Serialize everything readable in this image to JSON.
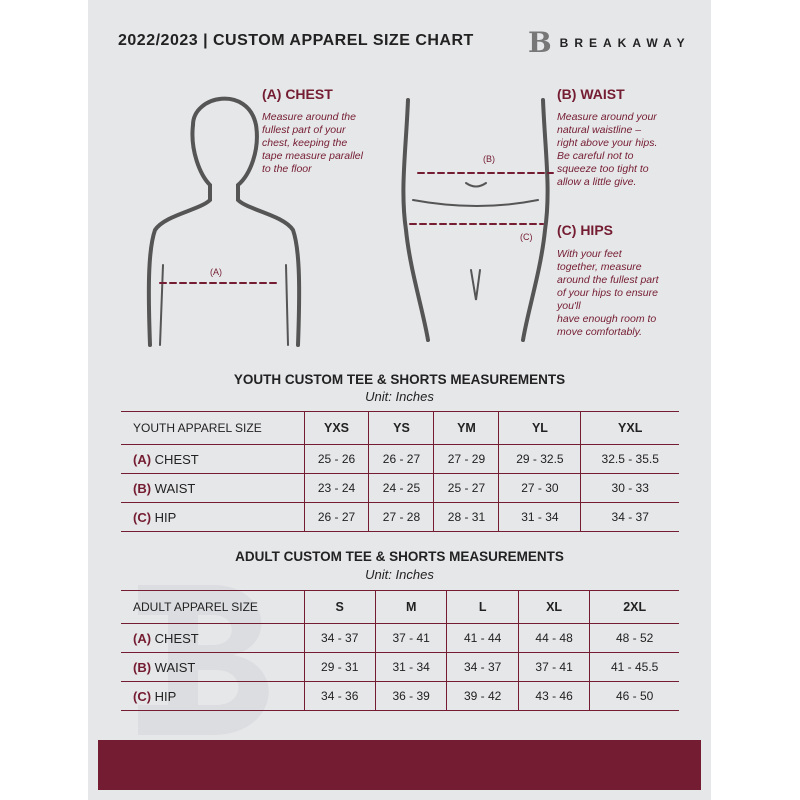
{
  "header": {
    "title": "2022/2023  |  CUSTOM APPAREL SIZE CHART",
    "brand": "BREAKAWAY",
    "brand_mark": "B"
  },
  "colors": {
    "accent": "#741c31",
    "background": "#e6e7e9"
  },
  "measures": {
    "chest": {
      "title": "(A) CHEST",
      "marker": "(A)",
      "lines": [
        "Measure around the",
        "fullest part of your",
        "chest, keeping the",
        "tape measure parallel",
        "to the floor"
      ]
    },
    "waist": {
      "title": "(B) WAIST",
      "marker": "(B)",
      "lines": [
        "Measure around your",
        "natural waistline –",
        "right above your hips.",
        "Be careful not to",
        "squeeze too tight to",
        "allow a little give."
      ]
    },
    "hips": {
      "title": "(C) HIPS",
      "marker": "(C)",
      "lines": [
        "With your feet",
        "together, measure",
        "around the fullest part",
        "of your hips to ensure",
        "you'll",
        "have enough room to",
        "move comfortably."
      ]
    }
  },
  "youth": {
    "title": "YOUTH CUSTOM TEE & SHORTS MEASUREMENTS",
    "unit": "Unit: Inches",
    "size_label": "YOUTH APPAREL SIZE",
    "sizes": [
      "YXS",
      "YS",
      "YM",
      "YL",
      "YXL"
    ],
    "rows": [
      {
        "code": "(A)",
        "name": "CHEST",
        "values": [
          "25 - 26",
          "26 - 27",
          "27 - 29",
          "29 - 32.5",
          "32.5 - 35.5"
        ]
      },
      {
        "code": "(B)",
        "name": "WAIST",
        "values": [
          "23 - 24",
          "24 - 25",
          "25 - 27",
          "27 - 30",
          "30 - 33"
        ]
      },
      {
        "code": "(C)",
        "name": "HIP",
        "values": [
          "26 - 27",
          "27 - 28",
          "28 - 31",
          "31 - 34",
          "34 - 37"
        ]
      }
    ]
  },
  "adult": {
    "title": "ADULT CUSTOM TEE & SHORTS MEASUREMENTS",
    "unit": "Unit: Inches",
    "size_label": "ADULT APPAREL SIZE",
    "sizes": [
      "S",
      "M",
      "L",
      "XL",
      "2XL"
    ],
    "rows": [
      {
        "code": "(A)",
        "name": "CHEST",
        "values": [
          "34 - 37",
          "37 - 41",
          "41 - 44",
          "44 - 48",
          "48 - 52"
        ]
      },
      {
        "code": "(B)",
        "name": "WAIST",
        "values": [
          "29 - 31",
          "31 - 34",
          "34 - 37",
          "37 - 41",
          "41 - 45.5"
        ]
      },
      {
        "code": "(C)",
        "name": "HIP",
        "values": [
          "34 - 36",
          "36 - 39",
          "39 - 42",
          "43 - 46",
          "46 - 50"
        ]
      }
    ]
  }
}
